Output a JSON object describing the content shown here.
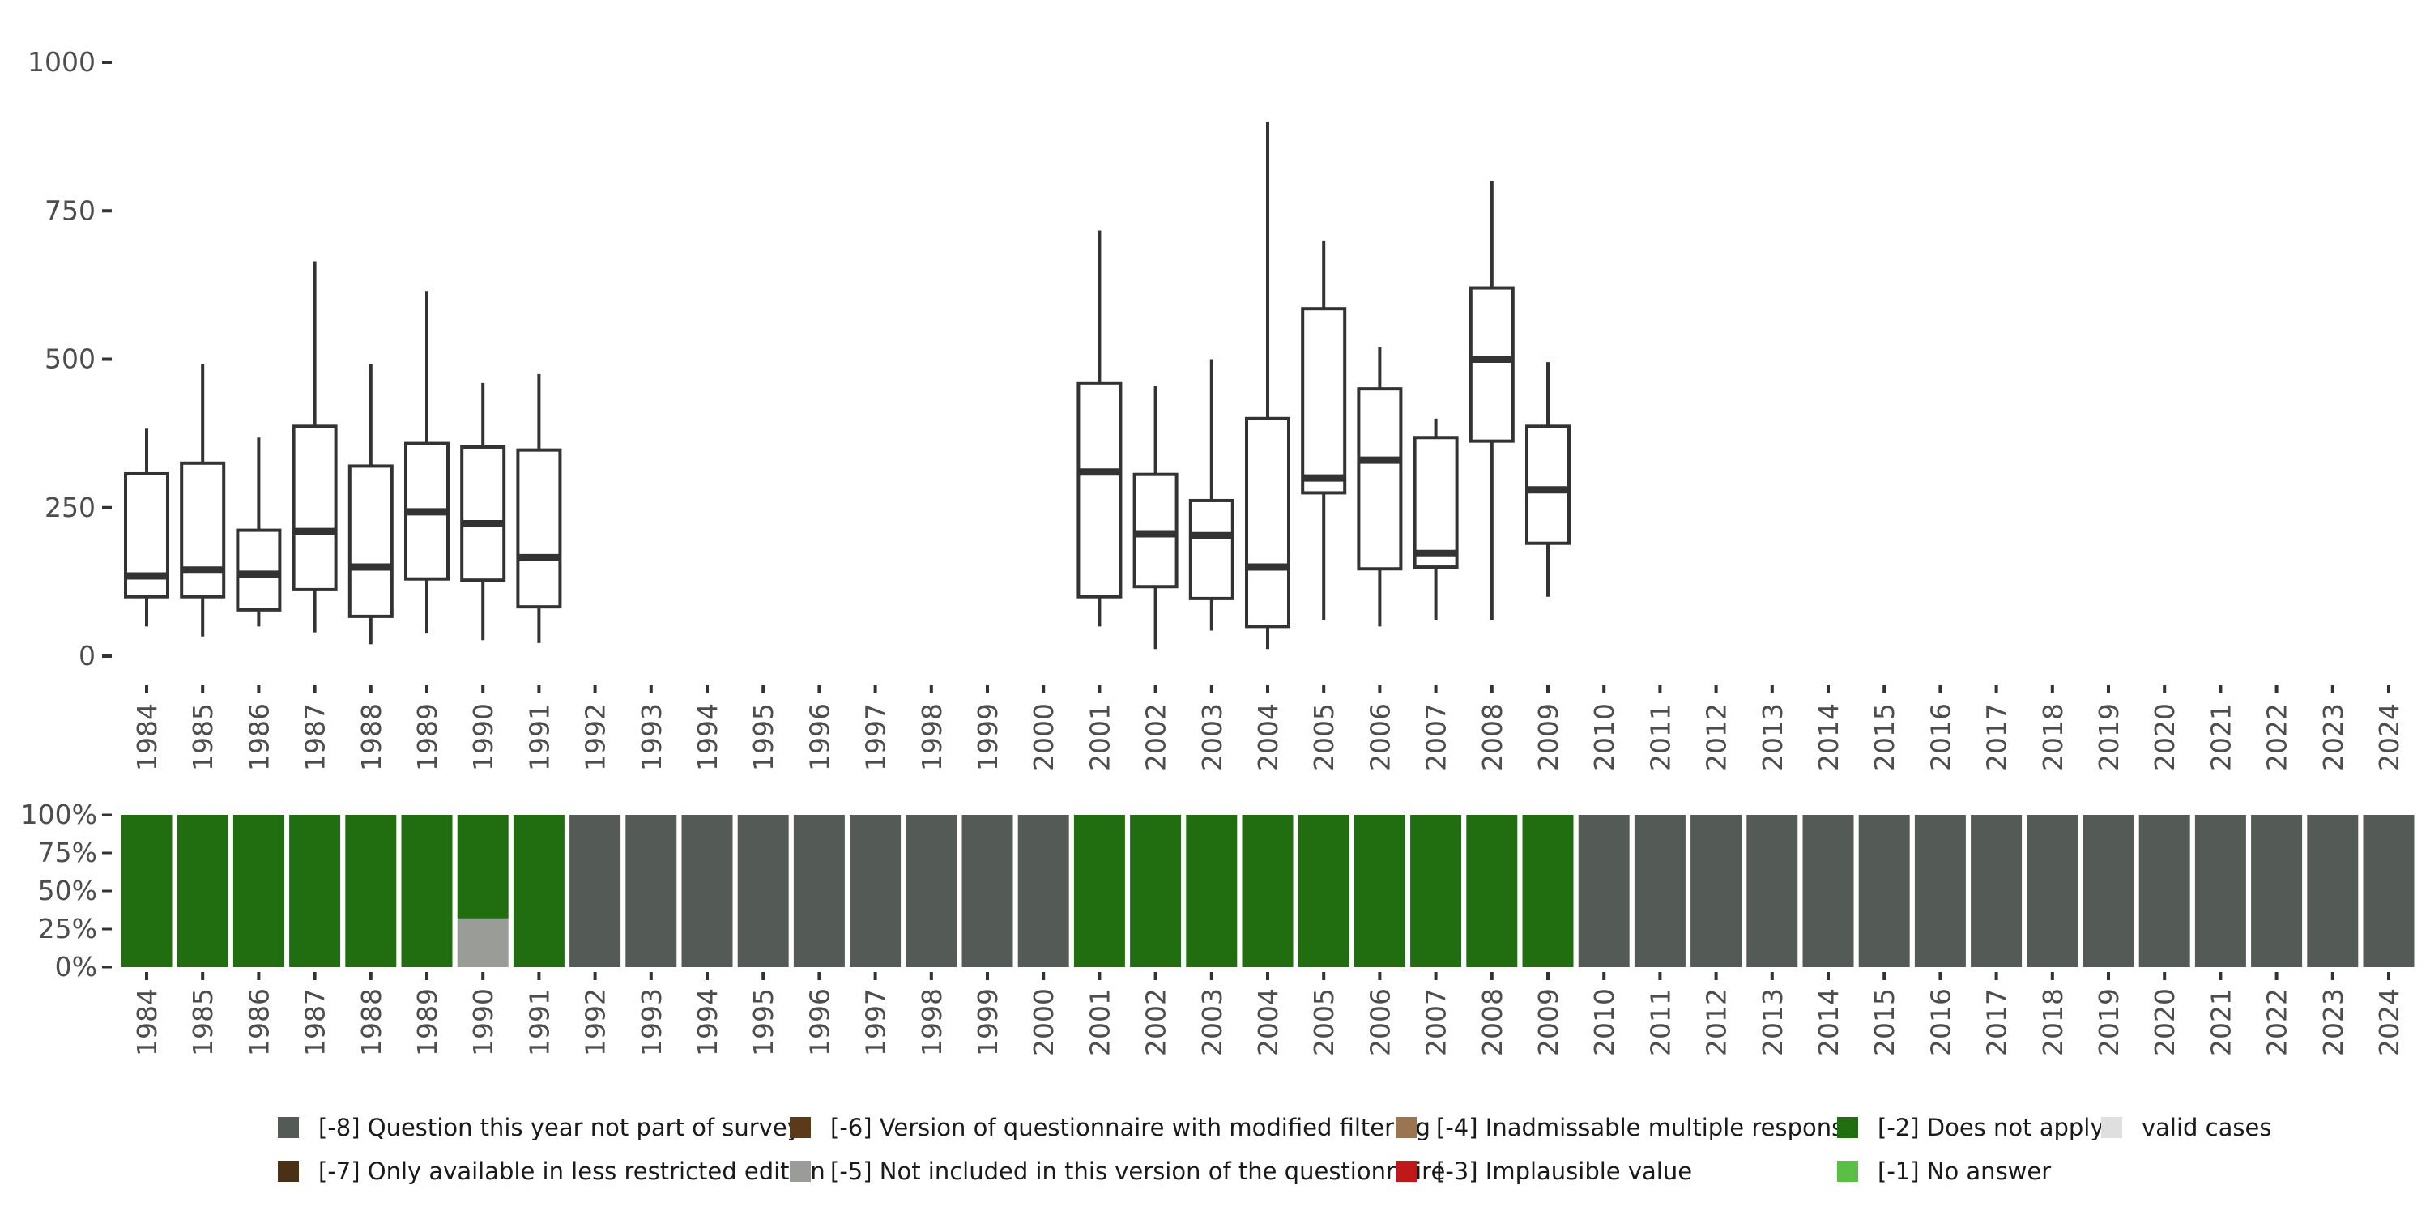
{
  "chart_data": [
    {
      "type": "boxplot",
      "categories": [
        "1984",
        "1985",
        "1986",
        "1987",
        "1988",
        "1989",
        "1990",
        "1991",
        "1992",
        "1993",
        "1994",
        "1995",
        "1996",
        "1997",
        "1998",
        "1999",
        "2000",
        "2001",
        "2002",
        "2003",
        "2004",
        "2005",
        "2006",
        "2007",
        "2008",
        "2009",
        "2010",
        "2011",
        "2012",
        "2013",
        "2014",
        "2015",
        "2016",
        "2017",
        "2018",
        "2019",
        "2020",
        "2021",
        "2022",
        "2023",
        "2024"
      ],
      "ylim": [
        0,
        1000
      ],
      "yticks": [
        0,
        250,
        500,
        750,
        1000
      ],
      "boxes": [
        {
          "year": "1984",
          "lower": 50,
          "q1": 100,
          "median": 135,
          "q3": 307,
          "upper": 383
        },
        {
          "year": "1985",
          "lower": 33,
          "q1": 100,
          "median": 145,
          "q3": 325,
          "upper": 492
        },
        {
          "year": "1986",
          "lower": 50,
          "q1": 78,
          "median": 138,
          "q3": 212,
          "upper": 368
        },
        {
          "year": "1987",
          "lower": 40,
          "q1": 112,
          "median": 210,
          "q3": 387,
          "upper": 665
        },
        {
          "year": "1988",
          "lower": 20,
          "q1": 67,
          "median": 150,
          "q3": 320,
          "upper": 492
        },
        {
          "year": "1989",
          "lower": 38,
          "q1": 130,
          "median": 243,
          "q3": 358,
          "upper": 615
        },
        {
          "year": "1990",
          "lower": 27,
          "q1": 128,
          "median": 223,
          "q3": 352,
          "upper": 460
        },
        {
          "year": "1991",
          "lower": 22,
          "q1": 83,
          "median": 166,
          "q3": 347,
          "upper": 475
        },
        {
          "year": "2001",
          "lower": 50,
          "q1": 100,
          "median": 310,
          "q3": 460,
          "upper": 717
        },
        {
          "year": "2002",
          "lower": 12,
          "q1": 117,
          "median": 206,
          "q3": 306,
          "upper": 455
        },
        {
          "year": "2003",
          "lower": 43,
          "q1": 97,
          "median": 203,
          "q3": 262,
          "upper": 500
        },
        {
          "year": "2004",
          "lower": 12,
          "q1": 50,
          "median": 150,
          "q3": 400,
          "upper": 900
        },
        {
          "year": "2005",
          "lower": 60,
          "q1": 275,
          "median": 300,
          "q3": 585,
          "upper": 700
        },
        {
          "year": "2006",
          "lower": 50,
          "q1": 147,
          "median": 330,
          "q3": 450,
          "upper": 520
        },
        {
          "year": "2007",
          "lower": 60,
          "q1": 150,
          "median": 173,
          "q3": 368,
          "upper": 400
        },
        {
          "year": "2008",
          "lower": 60,
          "q1": 362,
          "median": 500,
          "q3": 620,
          "upper": 800
        },
        {
          "year": "2009",
          "lower": 100,
          "q1": 190,
          "median": 280,
          "q3": 387,
          "upper": 495
        }
      ]
    },
    {
      "type": "stacked_bar",
      "categories": [
        "1984",
        "1985",
        "1986",
        "1987",
        "1988",
        "1989",
        "1990",
        "1991",
        "1992",
        "1993",
        "1994",
        "1995",
        "1996",
        "1997",
        "1998",
        "1999",
        "2000",
        "2001",
        "2002",
        "2003",
        "2004",
        "2005",
        "2006",
        "2007",
        "2008",
        "2009",
        "2010",
        "2011",
        "2012",
        "2013",
        "2014",
        "2015",
        "2016",
        "2017",
        "2018",
        "2019",
        "2020",
        "2021",
        "2022",
        "2023",
        "2024"
      ],
      "yticks": [
        "0%",
        "25%",
        "50%",
        "75%",
        "100%"
      ],
      "series": [
        {
          "name": "[-8] Question this year not part of survey",
          "color": "#545b56",
          "values": [
            0,
            0,
            0,
            0,
            0,
            0,
            0,
            0,
            1,
            1,
            1,
            1,
            1,
            1,
            1,
            1,
            1,
            0,
            0,
            0,
            0,
            0,
            0,
            0,
            0,
            0,
            1,
            1,
            1,
            1,
            1,
            1,
            1,
            1,
            1,
            1,
            1,
            1,
            1,
            1,
            1
          ]
        },
        {
          "name": "[-5] Not included in this version of the questionnaire",
          "color": "#9a9c98",
          "values": [
            0,
            0,
            0,
            0,
            0,
            0,
            0.32,
            0,
            0,
            0,
            0,
            0,
            0,
            0,
            0,
            0,
            0,
            0,
            0,
            0,
            0,
            0,
            0,
            0,
            0,
            0,
            0,
            0,
            0,
            0,
            0,
            0,
            0,
            0,
            0,
            0,
            0,
            0,
            0,
            0,
            0
          ]
        },
        {
          "name": "[-2] Does not apply",
          "color": "#206e10",
          "values": [
            1,
            1,
            1,
            1,
            1,
            1,
            0.68,
            1,
            0,
            0,
            0,
            0,
            0,
            0,
            0,
            0,
            0,
            1,
            1,
            1,
            1,
            1,
            1,
            1,
            1,
            1,
            0,
            0,
            0,
            0,
            0,
            0,
            0,
            0,
            0,
            0,
            0,
            0,
            0,
            0,
            0
          ]
        }
      ]
    }
  ],
  "legend": [
    {
      "label": "[-8] Question this year not part of survey",
      "color": "#545b56"
    },
    {
      "label": "[-7] Only available in less restricted edition",
      "color": "#4a3015"
    },
    {
      "label": "[-6] Version of questionnaire with modified filtering",
      "color": "#5a3a19"
    },
    {
      "label": "[-5] Not included in this version of the questionnaire",
      "color": "#9a9c98"
    },
    {
      "label": "[-4] Inadmissable multiple response",
      "color": "#9a7550"
    },
    {
      "label": "[-3] Implausible value",
      "color": "#c01818"
    },
    {
      "label": "[-2] Does not apply",
      "color": "#206e10"
    },
    {
      "label": "[-1] No answer",
      "color": "#5cbf45"
    },
    {
      "label": "valid cases",
      "color": "#dedfde"
    }
  ]
}
